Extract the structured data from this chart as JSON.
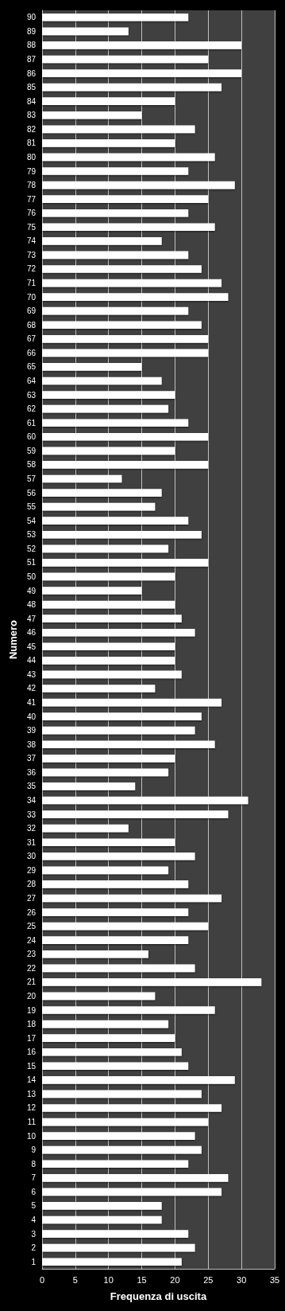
{
  "chart_data": {
    "type": "bar",
    "orientation": "horizontal",
    "xlabel": "Frequenza di uscita",
    "ylabel": "Numero",
    "categories": [
      "90",
      "89",
      "88",
      "87",
      "86",
      "85",
      "84",
      "83",
      "82",
      "81",
      "80",
      "79",
      "78",
      "77",
      "76",
      "75",
      "74",
      "73",
      "72",
      "71",
      "70",
      "69",
      "68",
      "67",
      "66",
      "65",
      "64",
      "63",
      "62",
      "61",
      "60",
      "59",
      "58",
      "57",
      "56",
      "55",
      "54",
      "53",
      "52",
      "51",
      "50",
      "49",
      "48",
      "47",
      "46",
      "45",
      "44",
      "43",
      "42",
      "41",
      "40",
      "39",
      "38",
      "37",
      "36",
      "35",
      "34",
      "33",
      "32",
      "31",
      "30",
      "29",
      "28",
      "27",
      "26",
      "25",
      "24",
      "23",
      "22",
      "21",
      "20",
      "19",
      "18",
      "17",
      "16",
      "15",
      "14",
      "13",
      "12",
      "11",
      "10",
      "9",
      "8",
      "7",
      "6",
      "5",
      "4",
      "3",
      "2",
      "1"
    ],
    "values": [
      22,
      13,
      30,
      25,
      30,
      27,
      20,
      15,
      23,
      20,
      26,
      22,
      29,
      25,
      22,
      26,
      18,
      22,
      24,
      27,
      28,
      22,
      24,
      25,
      25,
      15,
      18,
      20,
      19,
      22,
      25,
      20,
      25,
      12,
      18,
      17,
      22,
      24,
      19,
      25,
      20,
      15,
      20,
      21,
      23,
      20,
      20,
      21,
      17,
      27,
      24,
      23,
      26,
      20,
      19,
      14,
      31,
      28,
      13,
      20,
      23,
      19,
      22,
      27,
      22,
      25,
      22,
      16,
      23,
      33,
      17,
      26,
      19,
      20,
      21,
      22,
      29,
      24,
      27,
      25,
      23,
      24,
      22,
      28,
      27,
      18,
      18,
      22,
      23,
      21
    ],
    "color": "#ffffff",
    "xlim": [
      0,
      35
    ],
    "xticks": [
      0,
      5,
      10,
      15,
      20,
      25,
      30,
      35
    ],
    "grid": "x"
  }
}
